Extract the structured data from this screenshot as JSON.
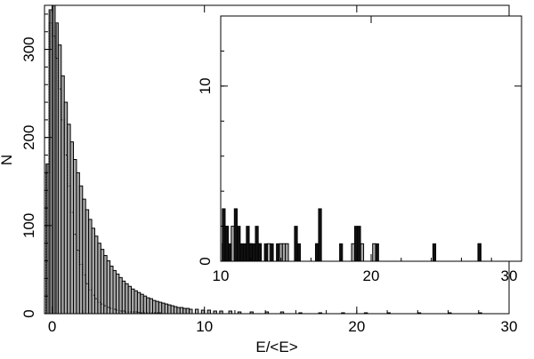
{
  "chart_data": [
    {
      "type": "histogram",
      "role": "main",
      "xlabel": "E/<E>",
      "ylabel": "N",
      "xlim": [
        -0.5,
        30
      ],
      "ylim": [
        0,
        350
      ],
      "x_ticks": [
        0,
        10,
        20,
        30
      ],
      "y_ticks": [
        0,
        100,
        200,
        300
      ],
      "grid": false,
      "series": [
        {
          "style": "solid-outline",
          "bin_width": 0.2,
          "x": [
            -0.4,
            -0.2,
            0,
            0.2,
            0.4,
            0.6,
            0.8,
            1,
            1.2,
            1.4,
            1.6,
            1.8,
            2,
            2.2,
            2.4,
            2.6,
            2.8,
            3,
            3.2,
            3.4,
            3.6,
            3.8,
            4,
            4.2,
            4.4,
            4.6,
            4.8,
            5,
            5.2,
            5.4,
            5.6,
            5.8,
            6,
            6.2,
            6.4,
            6.6,
            6.8,
            7,
            7.2,
            7.4,
            7.6,
            7.8,
            8,
            8.2,
            8.4,
            8.6,
            8.8,
            9,
            9.4,
            9.8,
            10.2,
            10.6,
            11,
            11.6,
            12.2,
            13,
            14,
            15,
            16.2,
            17.5,
            19,
            20.5,
            22,
            24,
            26,
            28
          ],
          "y": [
            170,
            345,
            350,
            330,
            305,
            270,
            240,
            215,
            195,
            175,
            160,
            145,
            130,
            118,
            107,
            97,
            88,
            80,
            73,
            66,
            60,
            54,
            49,
            45,
            41,
            37,
            34,
            31,
            28,
            26,
            24,
            22,
            20,
            18,
            17,
            15,
            14,
            13,
            12,
            11,
            10,
            9,
            8,
            7,
            7,
            6,
            6,
            5,
            5,
            4,
            4,
            3,
            3,
            3,
            2,
            2,
            2,
            2,
            1,
            1,
            1,
            1,
            1,
            1,
            1,
            1
          ]
        },
        {
          "style": "dotted-outline",
          "bin_width": 0.2,
          "x": [
            -0.4,
            -0.2,
            0,
            0.2,
            0.4,
            0.6,
            0.8,
            1,
            1.2,
            1.4,
            1.6,
            1.8,
            2,
            2.2,
            2.4,
            2.6,
            2.8,
            3,
            3.2,
            3.4,
            3.6,
            3.8,
            4,
            4.2,
            4.4,
            4.6,
            4.8,
            5,
            5.4,
            5.8,
            6.2,
            7
          ],
          "y": [
            160,
            330,
            315,
            290,
            255,
            220,
            180,
            145,
            115,
            90,
            72,
            56,
            44,
            34,
            27,
            21,
            17,
            13,
            11,
            9,
            7,
            6,
            5,
            4,
            3,
            3,
            2,
            2,
            2,
            1,
            1,
            1
          ]
        }
      ]
    },
    {
      "type": "histogram",
      "role": "inset",
      "xlim": [
        10,
        30
      ],
      "ylim": [
        0,
        14
      ],
      "x_ticks": [
        10,
        20,
        30
      ],
      "y_ticks": [
        0,
        10
      ],
      "grid": false,
      "series": [
        {
          "style": "solid-dark",
          "bin_width": 0.2,
          "x": [
            10.1,
            10.3,
            10.5,
            10.9,
            11.1,
            11.3,
            11.5,
            11.7,
            11.9,
            12.1,
            12.3,
            12.5,
            12.9,
            13.3,
            13.7,
            14.9,
            15.1,
            16.3,
            16.5,
            17.9,
            18.9,
            19.1,
            20.3,
            24.1,
            27.1
          ],
          "y": [
            3,
            2,
            1,
            3,
            2,
            1,
            1,
            2,
            1,
            1,
            2,
            1,
            1,
            1,
            1,
            2,
            1,
            1,
            3,
            1,
            2,
            2,
            1,
            1,
            1
          ]
        },
        {
          "style": "light-grey",
          "bin_width": 0.2,
          "x": [
            10.1,
            10.3,
            10.7,
            11.1,
            11.9,
            12.5,
            13.1,
            13.9,
            14.1,
            14.3,
            16.3,
            18.7,
            19.3,
            20.1,
            27.1
          ],
          "y": [
            1,
            2,
            2,
            1,
            1,
            1,
            1,
            1,
            1,
            1,
            1,
            1,
            1,
            1,
            1
          ]
        }
      ]
    }
  ]
}
